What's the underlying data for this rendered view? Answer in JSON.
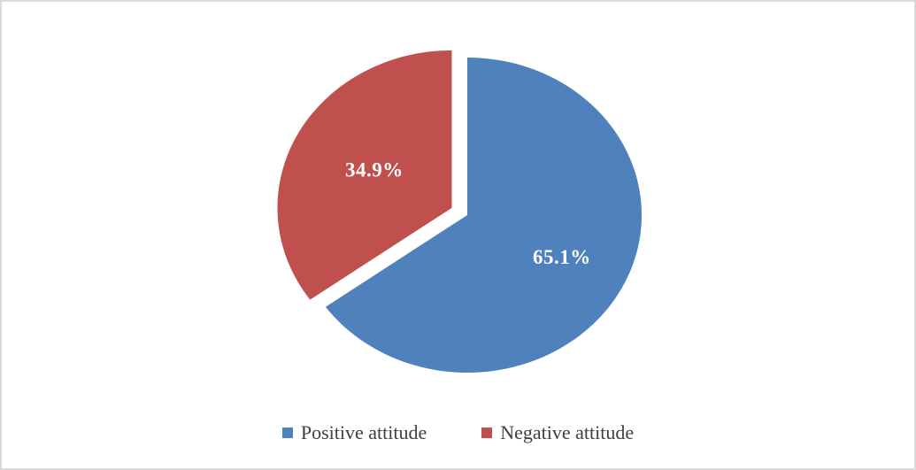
{
  "chart_data": {
    "type": "pie",
    "title": "",
    "slices": [
      {
        "name": "Positive attitude",
        "value": 65.1,
        "label": "65.1%",
        "color": "#4F81BD",
        "exploded": false
      },
      {
        "name": "Negative attitude",
        "value": 34.9,
        "label": "34.9%",
        "color": "#C0504D",
        "exploded": true
      }
    ],
    "start_angle_deg": -90,
    "direction": "clockwise",
    "data_label_color": "#FFFFFF",
    "legend": {
      "position": "bottom",
      "entries": [
        "Positive attitude",
        "Negative attitude"
      ]
    }
  }
}
